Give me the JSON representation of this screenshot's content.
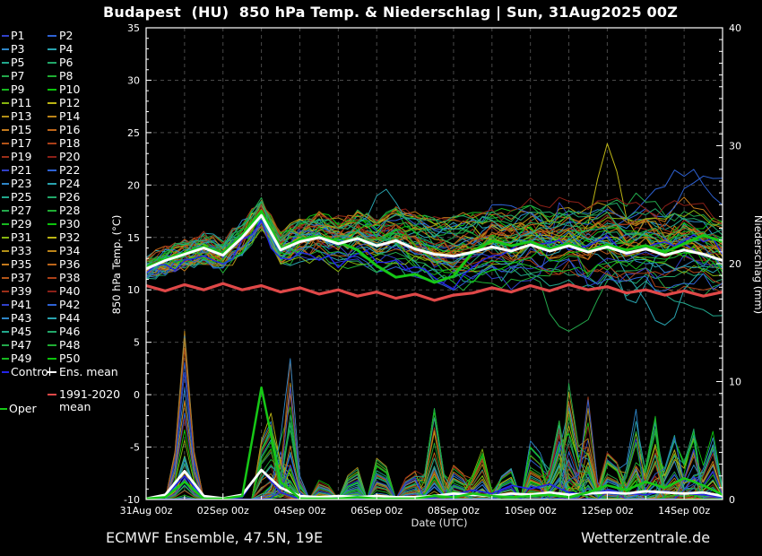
{
  "footer": {
    "left": "ECMWF Ensemble, 47.5N, 19E",
    "right": "Wetterzentrale.de"
  },
  "legend": {
    "members": [
      "P1",
      "P2",
      "P3",
      "P4",
      "P5",
      "P6",
      "P7",
      "P8",
      "P9",
      "P10",
      "P11",
      "P12",
      "P13",
      "P14",
      "P15",
      "P16",
      "P17",
      "P18",
      "P19",
      "P20",
      "P21",
      "P22",
      "P23",
      "P24",
      "P25",
      "P26",
      "P27",
      "P28",
      "P29",
      "P30",
      "P31",
      "P32",
      "P33",
      "P34",
      "P35",
      "P36",
      "P37",
      "P38",
      "P39",
      "P40",
      "P41",
      "P42",
      "P43",
      "P44",
      "P45",
      "P46",
      "P47",
      "P48",
      "P49",
      "P50"
    ],
    "member_color_cycle": [
      "#3140c8",
      "#2e62d4",
      "#2e86c8",
      "#29a3af",
      "#21a88c",
      "#22a869",
      "#23a84b",
      "#1fae33",
      "#17b81f",
      "#0cc40c",
      "#86b40e",
      "#bcb414",
      "#b39016",
      "#bd8418",
      "#c47a1c",
      "#bd661a",
      "#b35418",
      "#ab4018",
      "#9c2e18",
      "#8c2018"
    ],
    "special": [
      {
        "label": "Control",
        "color": "#2424e8"
      },
      {
        "label": "Ens. mean",
        "color": "#ffffff"
      },
      {
        "label": "1991-2020 mean",
        "color": "#e04848"
      },
      {
        "label": "Oper",
        "color": "#16c816"
      }
    ]
  },
  "chart_data": {
    "type": "line",
    "title": "Budapest  (HU)  850 hPa Temp. & Niederschlag | Sun, 31Aug2025 00Z",
    "xlabel": "Date (UTC)",
    "ylabel_left": "850 hPa Temp. (°C)",
    "ylabel_right": "Niederschlag (mm)",
    "background": "#000000",
    "grid_color": "#4a4a4a",
    "frame_color": "#ffffff",
    "x_days": [
      0,
      15
    ],
    "x_ticks": [
      {
        "day": 0,
        "label": "31Aug 00z"
      },
      {
        "day": 2,
        "label": "02Sep 00z"
      },
      {
        "day": 4,
        "label": "04Sep 00z"
      },
      {
        "day": 6,
        "label": "06Sep 00z"
      },
      {
        "day": 8,
        "label": "08Sep 00z"
      },
      {
        "day": 10,
        "label": "10Sep 00z"
      },
      {
        "day": 12,
        "label": "12Sep 00z"
      },
      {
        "day": 14,
        "label": "14Sep 00z"
      }
    ],
    "y_left": {
      "min": -10,
      "max": 35,
      "tick_step": 5,
      "minor_step": 1,
      "gridlines": true
    },
    "y_right": {
      "min": 0,
      "max": 40,
      "tick_step": 10,
      "minor_step": 1,
      "labels": [
        0,
        10,
        20,
        30,
        40
      ]
    },
    "vertical_gridlines_every_days": 1,
    "sample_step_days": 0.5,
    "series": {
      "ens_mean_temp": {
        "label": "Ens. mean",
        "color": "#ffffff",
        "width": 3,
        "values": [
          12.0,
          12.8,
          13.4,
          14.0,
          13.3,
          15.0,
          17.1,
          13.8,
          14.6,
          15.0,
          14.4,
          14.9,
          14.2,
          14.7,
          13.9,
          13.4,
          13.2,
          13.6,
          14.1,
          13.7,
          14.3,
          13.7,
          14.2,
          13.6,
          14.1,
          13.5,
          13.9,
          13.3,
          13.8,
          13.4,
          12.8
        ]
      },
      "climate_mean_temp": {
        "label": "1991-2020 mean",
        "color": "#e04848",
        "width": 3.2,
        "values": [
          10.4,
          9.9,
          10.5,
          10.0,
          10.6,
          10.0,
          10.4,
          9.8,
          10.2,
          9.6,
          10.0,
          9.4,
          9.8,
          9.2,
          9.6,
          9.0,
          9.5,
          9.7,
          10.2,
          9.8,
          10.4,
          9.9,
          10.5,
          10.0,
          10.3,
          9.7,
          10.0,
          9.5,
          9.9,
          9.4,
          9.8
        ]
      },
      "oper_temp": {
        "label": "Oper",
        "color": "#16c816",
        "width": 3,
        "values": [
          12.1,
          12.9,
          13.5,
          14.1,
          13.4,
          15.2,
          17.5,
          13.9,
          14.8,
          15.1,
          14.6,
          13.8,
          12.3,
          11.2,
          11.5,
          10.7,
          11.3,
          13.6,
          14.7,
          14.2,
          14.6,
          13.9,
          14.4,
          13.7,
          14.3,
          13.8,
          14.2,
          13.6,
          14.4,
          15.2,
          14.6
        ]
      },
      "ens_mean_precip": {
        "label": "Ens. mean",
        "color": "#ffffff",
        "width": 2.8,
        "values": [
          0,
          0.4,
          2.4,
          0.3,
          0.1,
          0.4,
          2.5,
          1.0,
          0.3,
          0.2,
          0.3,
          0.2,
          0.3,
          0.2,
          0.2,
          0.3,
          0.5,
          0.4,
          0.3,
          0.5,
          0.4,
          0.6,
          0.4,
          0.5,
          0.6,
          0.5,
          0.7,
          0.6,
          0.5,
          0.6,
          0.3
        ]
      },
      "oper_precip": {
        "label": "Oper",
        "color": "#16c816",
        "width": 2.5,
        "values": [
          0,
          0.2,
          1.5,
          0,
          0,
          0.3,
          9.5,
          1.5,
          0,
          0,
          0,
          0.2,
          0,
          0,
          0,
          0.3,
          0.2,
          0.5,
          0.3,
          0.2,
          0.3,
          0.4,
          0.2,
          0.6,
          1.2,
          0.8,
          1.5,
          1.0,
          1.8,
          1.2,
          0.4
        ]
      },
      "control_precip": {
        "label": "Control",
        "color": "#2424e8",
        "width": 1.6,
        "values": [
          0,
          0.3,
          2.0,
          0.2,
          0,
          0.2,
          2.5,
          0.6,
          0,
          0,
          0.2,
          0,
          0,
          0.2,
          0,
          0.2,
          0.4,
          0.8,
          0.5,
          1.2,
          0.9,
          1.3,
          0.6,
          0.4,
          0.8,
          0.5,
          0.4,
          0.7,
          0.5,
          0.4,
          0.2
        ]
      }
    },
    "ensemble": {
      "count": 50,
      "control_color": "#2424e8",
      "temp_spread_halfwidth": [
        0.8,
        0.9,
        1.0,
        1.1,
        1.2,
        1.2,
        1.1,
        1.4,
        1.6,
        1.8,
        2.0,
        2.2,
        2.4,
        2.6,
        2.8,
        3.0,
        3.2,
        3.3,
        3.5,
        3.6,
        3.8,
        3.9,
        4.1,
        4.2,
        4.4,
        4.5,
        4.7,
        4.8,
        5.0,
        5.2,
        5.4
      ],
      "temp_outliers": [
        {
          "member": 12,
          "day": 12.05,
          "amp": 8.0,
          "w": 0.4
        },
        {
          "member": 21,
          "day": 10.8,
          "amp": 6.5,
          "w": 0.35
        },
        {
          "member": 2,
          "day": 14.0,
          "amp": 6.0,
          "w": 1.1
        },
        {
          "member": 22,
          "day": 14.8,
          "amp": 5.0,
          "w": 0.7
        },
        {
          "member": 7,
          "day": 11.0,
          "amp": -6.5,
          "w": 0.8
        },
        {
          "member": 24,
          "day": 13.3,
          "amp": -6.5,
          "w": 0.8
        },
        {
          "member": 4,
          "day": 12.7,
          "amp": -5.5,
          "w": 0.6
        },
        {
          "member": 44,
          "day": 6.2,
          "amp": 3.5,
          "w": 0.5
        }
      ],
      "precip_events": [
        {
          "day": 1.0,
          "w": 0.35,
          "max": 14.5
        },
        {
          "day": 3.15,
          "w": 0.3,
          "max": 10.0
        },
        {
          "day": 3.45,
          "w": 0.25,
          "max": 5.0
        },
        {
          "day": 3.75,
          "w": 0.3,
          "max": 12.5
        },
        {
          "day": 4.6,
          "w": 0.3,
          "max": 2.5
        },
        {
          "day": 5.4,
          "w": 0.3,
          "max": 4.5
        },
        {
          "day": 6.1,
          "w": 0.35,
          "max": 5.0
        },
        {
          "day": 6.9,
          "w": 0.3,
          "max": 4.0
        },
        {
          "day": 7.5,
          "w": 0.35,
          "max": 8.0
        },
        {
          "day": 8.1,
          "w": 0.3,
          "max": 4.5
        },
        {
          "day": 8.7,
          "w": 0.35,
          "max": 5.0
        },
        {
          "day": 9.4,
          "w": 0.3,
          "max": 4.0
        },
        {
          "day": 10.1,
          "w": 0.35,
          "max": 7.0
        },
        {
          "day": 10.7,
          "w": 0.3,
          "max": 9.0
        },
        {
          "day": 11.05,
          "w": 0.3,
          "max": 12.5
        },
        {
          "day": 11.5,
          "w": 0.3,
          "max": 9.0
        },
        {
          "day": 12.1,
          "w": 0.35,
          "max": 6.0
        },
        {
          "day": 12.7,
          "w": 0.3,
          "max": 9.5
        },
        {
          "day": 13.2,
          "w": 0.3,
          "max": 9.0
        },
        {
          "day": 13.7,
          "w": 0.35,
          "max": 7.0
        },
        {
          "day": 14.2,
          "w": 0.3,
          "max": 8.0
        },
        {
          "day": 14.7,
          "w": 0.35,
          "max": 7.0
        }
      ]
    }
  }
}
